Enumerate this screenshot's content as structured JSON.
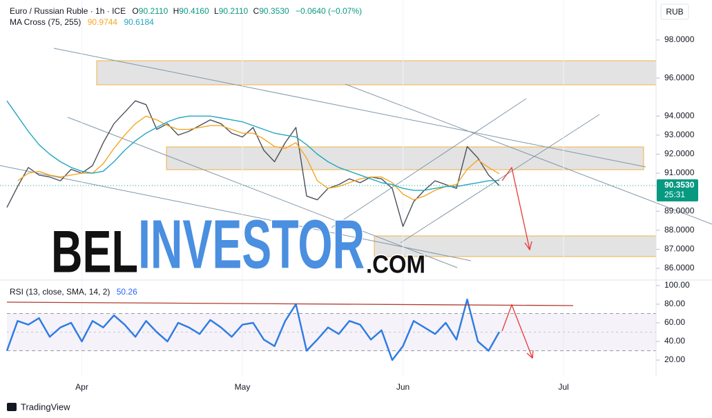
{
  "chart_data": [
    {
      "type": "line",
      "title": "Euro / Russian Ruble · 1h · ICE",
      "ylabel": "RUB",
      "indicator": "MA Cross (75, 255)",
      "categories": [
        null,
        null,
        null,
        null,
        null,
        null,
        null,
        "Apr",
        null,
        null,
        null,
        null,
        null,
        null,
        null,
        null,
        null,
        null,
        null,
        null,
        null,
        null,
        "May",
        null,
        null,
        null,
        null,
        null,
        null,
        null,
        null,
        null,
        null,
        null,
        null,
        null,
        null,
        "Jun",
        null,
        null,
        null,
        null,
        null,
        null,
        null,
        null,
        null,
        null,
        null,
        null,
        null,
        null,
        "Jul",
        null,
        null,
        null,
        null,
        null,
        null,
        null,
        null
      ],
      "series": [
        {
          "color": "#4a4f5a",
          "values": [
            89.2,
            90.3,
            91.3,
            90.9,
            90.8,
            90.6,
            91.2,
            91.0,
            91.4,
            92.6,
            93.6,
            94.2,
            94.8,
            94.6,
            93.3,
            93.6,
            93.0,
            93.2,
            93.5,
            93.8,
            93.6,
            93.1,
            92.9,
            93.4,
            92.2,
            91.6,
            92.6,
            93.4,
            89.8,
            89.6,
            90.2,
            90.4,
            90.7,
            90.5,
            90.8,
            90.7,
            90.2,
            88.2,
            89.5,
            90.1,
            90.6,
            90.4,
            90.2,
            92.4,
            91.8,
            90.9,
            90.35,
            null,
            null,
            null,
            null,
            null,
            null,
            null,
            null,
            null,
            null,
            null,
            null,
            null,
            null
          ]
        },
        {
          "color": "#f5a623",
          "values": [
            null,
            90.6,
            91.0,
            91.1,
            90.9,
            90.8,
            90.9,
            91.0,
            91.0,
            91.5,
            92.3,
            93.0,
            93.6,
            94.0,
            93.8,
            93.5,
            93.3,
            93.3,
            93.4,
            93.5,
            93.5,
            93.3,
            93.1,
            93.1,
            92.8,
            92.4,
            92.3,
            92.6,
            91.8,
            90.6,
            90.2,
            90.3,
            90.5,
            90.7,
            90.8,
            90.8,
            90.5,
            89.9,
            89.6,
            89.8,
            90.1,
            90.3,
            90.4,
            91.2,
            91.7,
            91.3,
            90.9744,
            null,
            null,
            null,
            null,
            null,
            null,
            null,
            null,
            null,
            null,
            null,
            null,
            null,
            null
          ]
        },
        {
          "color": "#22a6c0",
          "values": [
            94.8,
            94.0,
            93.2,
            92.5,
            92.0,
            91.6,
            91.3,
            91.1,
            91.0,
            91.1,
            91.6,
            92.2,
            92.7,
            93.1,
            93.4,
            93.7,
            93.9,
            94.0,
            94.0,
            94.0,
            93.9,
            93.8,
            93.7,
            93.5,
            93.3,
            93.1,
            93.0,
            92.9,
            92.5,
            92.0,
            91.6,
            91.3,
            91.1,
            90.9,
            90.7,
            90.5,
            90.4,
            90.2,
            90.1,
            90.1,
            90.2,
            90.3,
            90.3,
            90.4,
            90.5,
            90.6,
            90.6184,
            null,
            null,
            null,
            null,
            null,
            null,
            null,
            null,
            null,
            null,
            null,
            null,
            null,
            null
          ]
        }
      ],
      "ylim": [
        85.42,
        100.1
      ],
      "yticks": [
        {
          "value": 86,
          "label": "86.0000"
        },
        {
          "value": 87,
          "label": "87.0000"
        },
        {
          "value": 88,
          "label": "88.0000"
        },
        {
          "value": 89,
          "label": "89.0000"
        },
        {
          "value": 91,
          "label": "91.0000"
        },
        {
          "value": 92,
          "label": "92.0000"
        },
        {
          "value": 93,
          "label": "93.0000"
        },
        {
          "value": 94,
          "label": "94.0000"
        },
        {
          "value": 96,
          "label": "96.0000"
        },
        {
          "value": 98,
          "label": "98.0000"
        }
      ]
    },
    {
      "type": "line",
      "title": "RSI (13, close, SMA, 14, 2)",
      "series": [
        {
          "color": "#2f7de1",
          "values": [
            30,
            62,
            58,
            65,
            45,
            55,
            60,
            40,
            62,
            55,
            68,
            58,
            45,
            62,
            50,
            40,
            60,
            55,
            48,
            63,
            55,
            45,
            58,
            60,
            42,
            35,
            62,
            80,
            30,
            42,
            55,
            48,
            62,
            58,
            42,
            52,
            20,
            35,
            62,
            55,
            48,
            60,
            42,
            85,
            40,
            30,
            50.26,
            null,
            null,
            null,
            null,
            null,
            null,
            null,
            null,
            null,
            null,
            null,
            null,
            null,
            null
          ]
        }
      ],
      "band": [
        30,
        70
      ],
      "midline": 50,
      "ylim": [
        3,
        104.4
      ],
      "yticks": [
        {
          "value": 20,
          "label": "20.00"
        },
        {
          "value": 40,
          "label": "40.00"
        },
        {
          "value": 60,
          "label": "60.00"
        },
        {
          "value": 80,
          "label": "80.00"
        },
        {
          "value": 100,
          "label": "100.00"
        }
      ]
    }
  ],
  "ohlc": [
    {
      "key": "O",
      "value": "90.2110"
    },
    {
      "key": "H",
      "value": "90.4160"
    },
    {
      "key": "L",
      "value": "90.2110"
    },
    {
      "key": "C",
      "value": "90.3530"
    }
  ],
  "change": "−0.0640 (−0.07%)",
  "price_tag": {
    "price": "90.3530",
    "countdown": "25:31"
  },
  "watermark": {
    "part1": "BEL",
    "part2": "INVESTOR",
    "part3": ".COM"
  },
  "footer": "TradingView"
}
